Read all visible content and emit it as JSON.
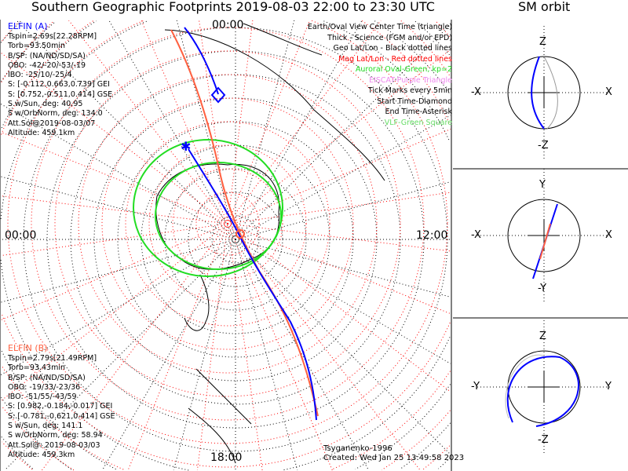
{
  "title": "Southern Geographic Footprints 2019-08-03 22:00 to 23:30 UTC",
  "sm_title": "SM orbit",
  "time_labels": {
    "top": "00:00",
    "left": "00:00",
    "right": "12:00",
    "bottom": "18:00"
  },
  "elfin_a": {
    "name": "ELFIN (A)",
    "color": "#0000ff",
    "lines": [
      "Tspin=2.69s[22.28RPM]",
      "Torb=93.50min",
      "B/SP: (NA/ND/SD/SA)",
      "OBO: -42/-20/-53/-19",
      "IBO: -25/10/-25/4",
      "S: [-0.112,0.663,0.739] GEI",
      "S: [0.752,-0.511,0.414] GSE",
      "S w/Sun, deg: 40.95",
      "S w/OrbNorm, deg: 134.0",
      "Att.Sol@2019-08-03/07",
      "Altitude: 459.1km"
    ]
  },
  "elfin_b": {
    "name": "ELFIN (B)",
    "color": "#ff6040",
    "lines": [
      "Tspin=2.79s[21.49RPM]",
      "Torb=93.43min",
      "B/SP: (NA/ND/SD/SA)",
      "OBO: -19/33/-23/36",
      "IBO: -51/55/-43/59",
      "S: [0.982,-0.184,-0.017] GEI",
      "S: [-0.781,-0.621,0.414] GSE",
      "S w/Sun, deg: 141.1",
      "S w/OrbNorm, deg: 58.94",
      "Att.Sol@: 2019-08-03/03",
      "Altitude: 459.3km"
    ]
  },
  "legend": [
    {
      "text": "Earth/Oval View Center Time (triangle)",
      "color": "#000000"
    },
    {
      "text": "Thick - Science (FGM and/or EPD)",
      "color": "#000000"
    },
    {
      "text": "Geo Lat/Lon - Black dotted lines",
      "color": "#000000"
    },
    {
      "text": "Mag Lat/Lon - Red dotted lines",
      "color": "#ff0000"
    },
    {
      "text": "Auroral Oval-Green, kp=2",
      "color": "#22dd22"
    },
    {
      "text": "EISCAT-Purple Triangle",
      "color": "#ee88ee"
    },
    {
      "text": "Tick Marks every 5min",
      "color": "#000000"
    },
    {
      "text": "Start Time-Diamond",
      "color": "#000000"
    },
    {
      "text": "End Time-Asterisk",
      "color": "#000000"
    },
    {
      "text": "VLF-Green Square",
      "color": "#66dd66"
    }
  ],
  "footer": {
    "model": "Tsyganenko-1996",
    "created": "Created: Wed Jan 25 13:49:58 2023"
  },
  "sm_panels": [
    {
      "top": "Z",
      "bottom": "-Z",
      "left": "-X",
      "right": "X"
    },
    {
      "top": "Y",
      "bottom": "-Y",
      "left": "-X",
      "right": "X"
    },
    {
      "top": "Z",
      "bottom": "-Z",
      "left": "-Y",
      "right": "Y"
    }
  ]
}
